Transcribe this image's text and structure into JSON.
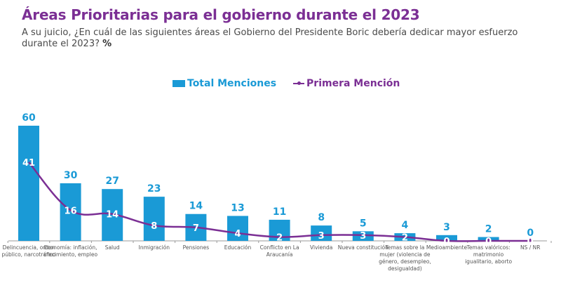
{
  "header": {
    "title": "Áreas Prioritarias para el gobierno durante el 2023",
    "subtitle": "A su juicio, ¿En cuál de las siguientes áreas el Gobierno del Presidente Boric debería dedicar mayor esfuerzo durante el 2023?",
    "subtitle_unit": "%"
  },
  "colors": {
    "title": "#7b2f94",
    "bar": "#1a9ad6",
    "line": "#7b2f94",
    "bar_label": "#1a9ad6",
    "line_label": "#ffffff"
  },
  "chart_data": {
    "type": "bar",
    "title": "Áreas Prioritarias para el gobierno durante el 2023",
    "xlabel": "",
    "ylabel": "%",
    "ylim": [
      0,
      60
    ],
    "grid": false,
    "legend_position": "top-center",
    "categories": [
      "Delincuencia, orden público, narcotráfico",
      "Economía: inflación, crecimiento, empleo",
      "Salud",
      "Inmigración",
      "Pensiones",
      "Educación",
      "Conflicto en La Araucanía",
      "Vivienda",
      "Nueva constitución",
      "Temas sobre la mujer (violencia de género, desempleo, desigualdad)",
      "Medioambiente",
      "Temas valóricos: matrimonio igualitario, aborto",
      "NS / NR"
    ],
    "series": [
      {
        "name": "Total Menciones",
        "type": "bar",
        "values": [
          60,
          30,
          27,
          23,
          14,
          13,
          11,
          8,
          5,
          4,
          3,
          2,
          0
        ]
      },
      {
        "name": "Primera Mención",
        "type": "line",
        "values": [
          41,
          16,
          14,
          8,
          7,
          4,
          2,
          3,
          3,
          2,
          0,
          0,
          0
        ]
      }
    ]
  }
}
